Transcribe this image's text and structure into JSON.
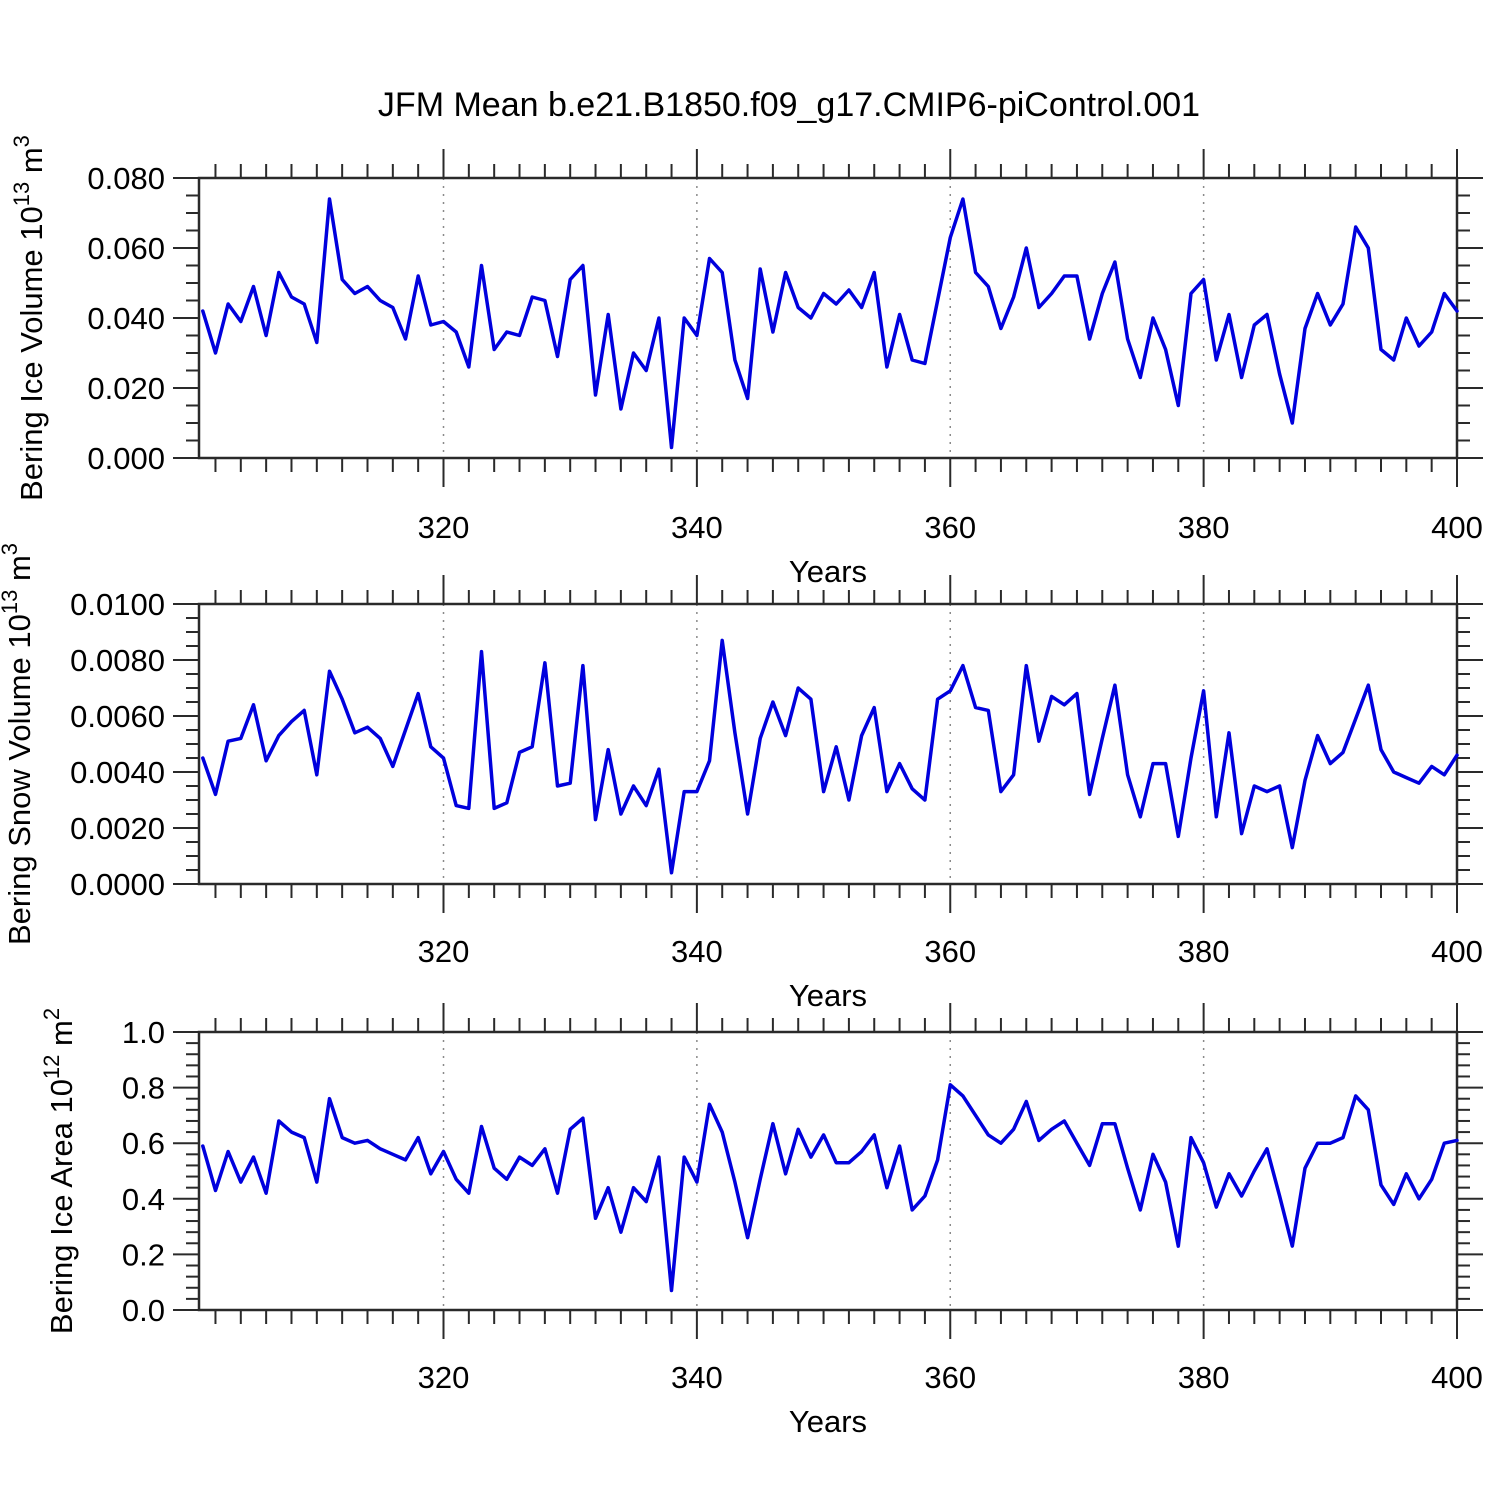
{
  "title": "JFM Mean b.e21.B1850.f09_g17.CMIP6-piControl.001",
  "colors": {
    "line": "#0000dd",
    "grid": "#8a8a8a",
    "axis": "#2a2a2a",
    "text": "#000000",
    "background": "#ffffff"
  },
  "x_axis": {
    "label": "Years",
    "start_year": 301,
    "end_year": 400,
    "xlim": [
      300.7,
      400
    ],
    "major_ticks": [
      320,
      340,
      360,
      380,
      400
    ],
    "minor_step": 2,
    "gridlines": [
      320,
      340,
      360,
      380
    ],
    "grid_style": "dashed"
  },
  "chart_data": [
    {
      "type": "line",
      "name": "bering-ice-volume",
      "ylabel": "Bering Ice Volume 10^13 m^3",
      "ylabel_rich": [
        [
          "Bering Ice Volume 10",
          0
        ],
        [
          "13",
          1
        ],
        [
          " m",
          0
        ],
        [
          "3",
          1
        ]
      ],
      "xlabel": "Years",
      "ylim": [
        0,
        0.08
      ],
      "yticks": [
        0,
        0.02,
        0.04,
        0.06,
        0.08
      ],
      "ytick_labels": [
        "0.000",
        "0.020",
        "0.040",
        "0.060",
        "0.080"
      ],
      "y_minor_step": 0.005,
      "x_start": 301,
      "values": [
        0.042,
        0.03,
        0.044,
        0.039,
        0.049,
        0.035,
        0.053,
        0.046,
        0.044,
        0.033,
        0.074,
        0.051,
        0.047,
        0.049,
        0.045,
        0.043,
        0.034,
        0.052,
        0.038,
        0.039,
        0.036,
        0.026,
        0.055,
        0.031,
        0.036,
        0.035,
        0.046,
        0.045,
        0.029,
        0.051,
        0.055,
        0.018,
        0.041,
        0.014,
        0.03,
        0.025,
        0.04,
        0.003,
        0.04,
        0.035,
        0.057,
        0.053,
        0.028,
        0.017,
        0.054,
        0.036,
        0.053,
        0.043,
        0.04,
        0.047,
        0.044,
        0.048,
        0.043,
        0.053,
        0.026,
        0.041,
        0.028,
        0.027,
        0.045,
        0.063,
        0.074,
        0.053,
        0.049,
        0.037,
        0.046,
        0.06,
        0.043,
        0.047,
        0.052,
        0.052,
        0.034,
        0.047,
        0.056,
        0.034,
        0.023,
        0.04,
        0.031,
        0.015,
        0.047,
        0.051,
        0.028,
        0.041,
        0.023,
        0.038,
        0.041,
        0.024,
        0.01,
        0.037,
        0.047,
        0.038,
        0.044,
        0.066,
        0.06,
        0.031,
        0.028,
        0.04,
        0.032,
        0.036,
        0.047,
        0.042
      ]
    },
    {
      "type": "line",
      "name": "bering-snow-volume",
      "ylabel": "Bering Snow Volume 10^13 m^3",
      "ylabel_rich": [
        [
          "Bering Snow Volume 10",
          0
        ],
        [
          "13",
          1
        ],
        [
          " m",
          0
        ],
        [
          "3",
          1
        ]
      ],
      "xlabel": "Years",
      "ylim": [
        0,
        0.01
      ],
      "yticks": [
        0,
        0.002,
        0.004,
        0.006,
        0.008,
        0.01
      ],
      "ytick_labels": [
        "0.0000",
        "0.0020",
        "0.0040",
        "0.0060",
        "0.0080",
        "0.0100"
      ],
      "y_minor_step": 0.0005,
      "x_start": 301,
      "values": [
        0.0045,
        0.0032,
        0.0051,
        0.0052,
        0.0064,
        0.0044,
        0.0053,
        0.0058,
        0.0062,
        0.0039,
        0.0076,
        0.0066,
        0.0054,
        0.0056,
        0.0052,
        0.0042,
        0.0055,
        0.0068,
        0.0049,
        0.0045,
        0.0028,
        0.0027,
        0.0083,
        0.0027,
        0.0029,
        0.0047,
        0.0049,
        0.0079,
        0.0035,
        0.0036,
        0.0078,
        0.0023,
        0.0048,
        0.0025,
        0.0035,
        0.0028,
        0.0041,
        0.0004,
        0.0033,
        0.0033,
        0.0044,
        0.0087,
        0.0054,
        0.0025,
        0.0052,
        0.0065,
        0.0053,
        0.007,
        0.0066,
        0.0033,
        0.0049,
        0.003,
        0.0053,
        0.0063,
        0.0033,
        0.0043,
        0.0034,
        0.003,
        0.0066,
        0.0069,
        0.0078,
        0.0063,
        0.0062,
        0.0033,
        0.0039,
        0.0078,
        0.0051,
        0.0067,
        0.0064,
        0.0068,
        0.0032,
        0.0052,
        0.0071,
        0.0039,
        0.0024,
        0.0043,
        0.0043,
        0.0017,
        0.0045,
        0.0069,
        0.0024,
        0.0054,
        0.0018,
        0.0035,
        0.0033,
        0.0035,
        0.0013,
        0.0037,
        0.0053,
        0.0043,
        0.0047,
        0.0059,
        0.0071,
        0.0048,
        0.004,
        0.0038,
        0.0036,
        0.0042,
        0.0039,
        0.0046
      ]
    },
    {
      "type": "line",
      "name": "bering-ice-area",
      "ylabel": "Bering Ice Area 10^12 m^2",
      "ylabel_rich": [
        [
          "Bering Ice Area 10",
          0
        ],
        [
          "12",
          1
        ],
        [
          " m",
          0
        ],
        [
          "2",
          1
        ]
      ],
      "xlabel": "Years",
      "ylim": [
        0,
        1.0
      ],
      "yticks": [
        0,
        0.2,
        0.4,
        0.6,
        0.8,
        1.0
      ],
      "ytick_labels": [
        "0.0",
        "0.2",
        "0.4",
        "0.6",
        "0.8",
        "1.0"
      ],
      "y_minor_step": 0.04,
      "x_start": 301,
      "values": [
        0.59,
        0.43,
        0.57,
        0.46,
        0.55,
        0.42,
        0.68,
        0.64,
        0.62,
        0.46,
        0.76,
        0.62,
        0.6,
        0.61,
        0.58,
        0.56,
        0.54,
        0.62,
        0.49,
        0.57,
        0.47,
        0.42,
        0.66,
        0.51,
        0.47,
        0.55,
        0.52,
        0.58,
        0.42,
        0.65,
        0.69,
        0.33,
        0.44,
        0.28,
        0.44,
        0.39,
        0.55,
        0.07,
        0.55,
        0.46,
        0.74,
        0.64,
        0.46,
        0.26,
        0.47,
        0.67,
        0.49,
        0.65,
        0.55,
        0.63,
        0.53,
        0.53,
        0.57,
        0.63,
        0.44,
        0.59,
        0.36,
        0.41,
        0.54,
        0.81,
        0.77,
        0.7,
        0.63,
        0.6,
        0.65,
        0.75,
        0.61,
        0.65,
        0.68,
        0.6,
        0.52,
        0.67,
        0.67,
        0.51,
        0.36,
        0.56,
        0.46,
        0.23,
        0.62,
        0.53,
        0.37,
        0.49,
        0.41,
        0.5,
        0.58,
        0.41,
        0.23,
        0.51,
        0.6,
        0.6,
        0.62,
        0.77,
        0.72,
        0.45,
        0.38,
        0.49,
        0.4,
        0.47,
        0.6,
        0.61
      ]
    }
  ]
}
